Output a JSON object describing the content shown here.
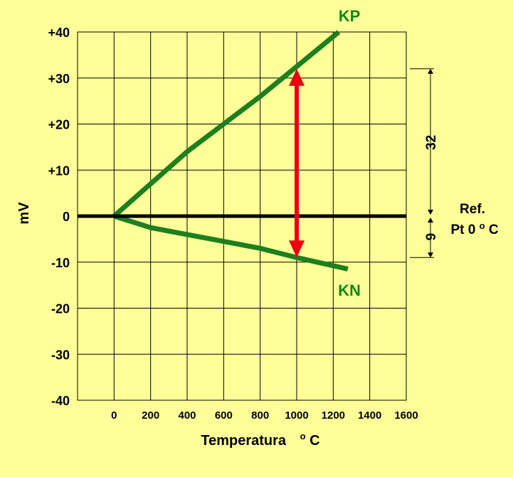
{
  "chart_data": {
    "type": "line",
    "xlabel": "Temperatura",
    "xlabel_unit_sup": "o",
    "xlabel_unit": "C",
    "ylabel": "mV",
    "xlim": [
      -200,
      1600
    ],
    "ylim": [
      -40,
      40
    ],
    "x_ticks": [
      0,
      200,
      400,
      600,
      800,
      1000,
      1200,
      1400,
      1600
    ],
    "y_ticks": [
      40,
      30,
      20,
      10,
      0,
      -10,
      -20,
      -30,
      -40
    ],
    "y_tick_labels": [
      "+40",
      "+30",
      "+20",
      "+10",
      "0",
      "-10",
      "-20",
      "-30",
      "-40"
    ],
    "grid": true,
    "series": [
      {
        "name": "KP",
        "color": "#1E7F1E",
        "x": [
          0,
          200,
          400,
          600,
          800,
          1000,
          1230
        ],
        "y": [
          0,
          7,
          14,
          20,
          26,
          32.5,
          40
        ]
      },
      {
        "name": "KN",
        "color": "#1E7F1E",
        "x": [
          0,
          200,
          400,
          600,
          800,
          1000,
          1280
        ],
        "y": [
          0,
          -2.5,
          -4,
          -5.5,
          -7,
          -9,
          -11.5
        ]
      }
    ],
    "reference_line": {
      "y": 0,
      "color": "#000000"
    },
    "annotation_arrow": {
      "x": 1000,
      "from_y": 32,
      "to_y": -9,
      "color": "#EE0011"
    },
    "dimensions": [
      {
        "label": "32",
        "from_y": 32,
        "to_y": 0
      },
      {
        "label": "9",
        "from_y": 0,
        "to_y": -9
      }
    ],
    "ref_label_line1": "Ref.",
    "ref_label_line2_prefix": "Pt 0",
    "ref_label_line2_sup": "o",
    "ref_label_line2_suffix": "C"
  }
}
